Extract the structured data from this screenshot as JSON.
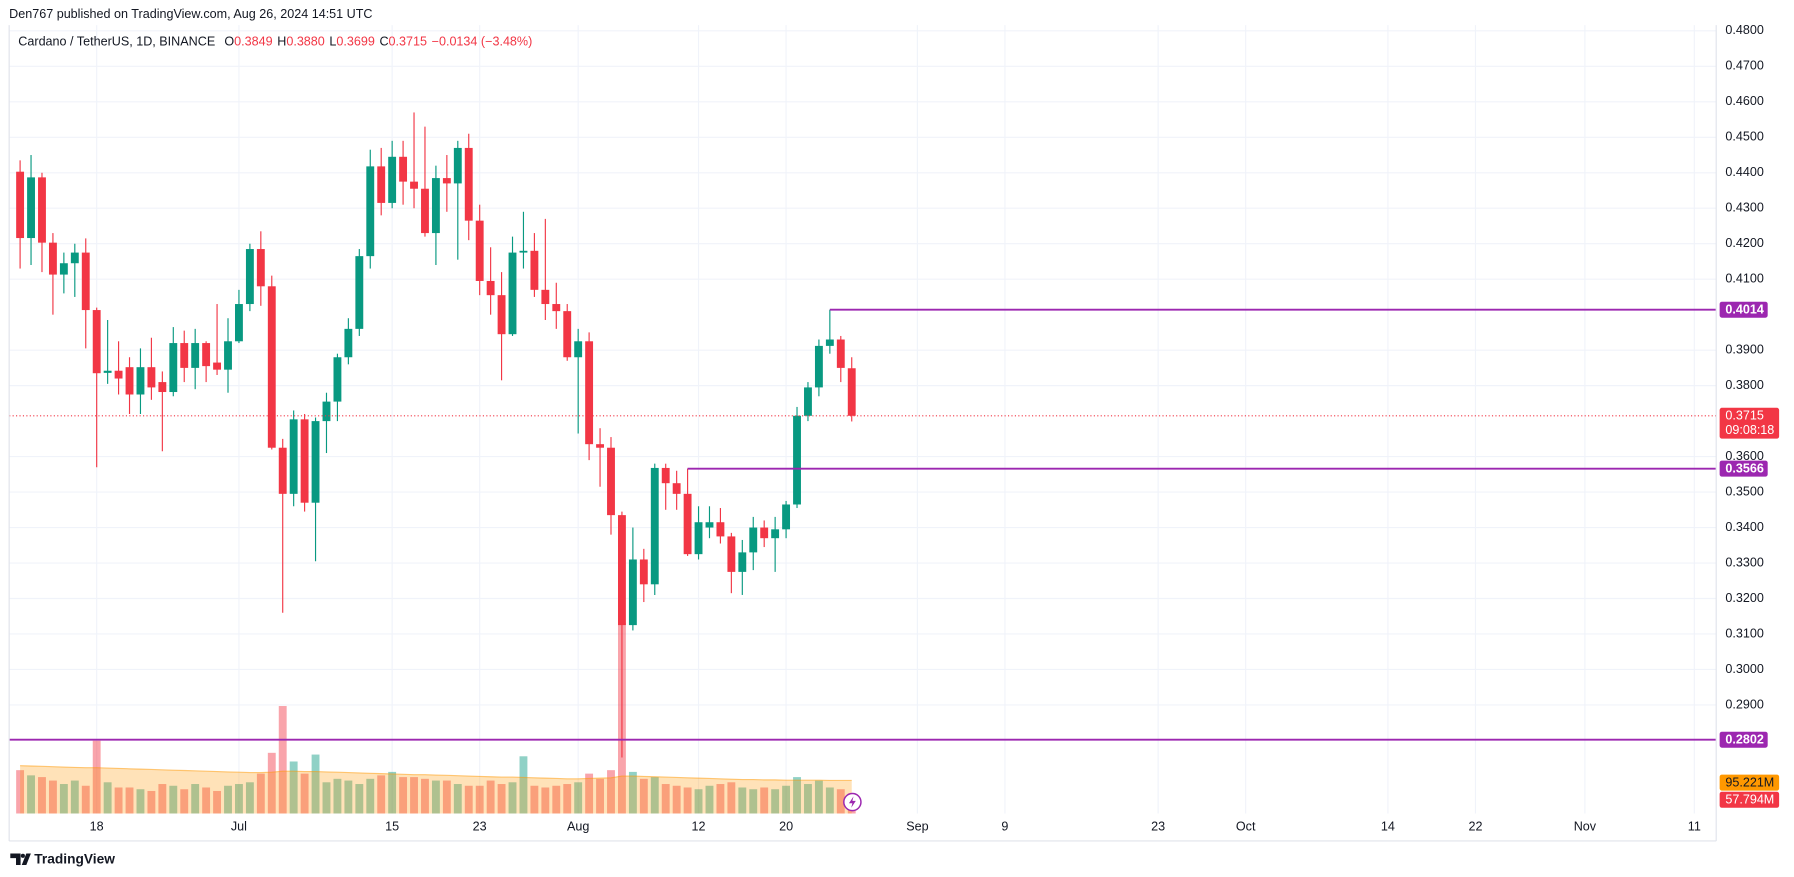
{
  "header": {
    "text": "Den767 published on TradingView.com, Aug 26, 2024 14:51 UTC"
  },
  "legend": {
    "symbol": "Cardano / TetherUS, 1D, BINANCE",
    "o_key": "O",
    "o": "0.3849",
    "h_key": "H",
    "h": "0.3880",
    "l_key": "L",
    "l": "0.3699",
    "c_key": "C",
    "c": "0.3715",
    "change": "−0.0134 (−3.48%)"
  },
  "footer": {
    "brand": "TradingView"
  },
  "chart_data": {
    "type": "candlestick",
    "x": [
      "2024-06-11",
      "2024-06-12",
      "2024-06-13",
      "2024-06-14",
      "2024-06-15",
      "2024-06-16",
      "2024-06-17",
      "2024-06-18",
      "2024-06-19",
      "2024-06-20",
      "2024-06-21",
      "2024-06-22",
      "2024-06-23",
      "2024-06-24",
      "2024-06-25",
      "2024-06-26",
      "2024-06-27",
      "2024-06-28",
      "2024-06-29",
      "2024-06-30",
      "2024-07-01",
      "2024-07-02",
      "2024-07-03",
      "2024-07-04",
      "2024-07-05",
      "2024-07-06",
      "2024-07-07",
      "2024-07-08",
      "2024-07-09",
      "2024-07-10",
      "2024-07-11",
      "2024-07-12",
      "2024-07-13",
      "2024-07-14",
      "2024-07-15",
      "2024-07-16",
      "2024-07-17",
      "2024-07-18",
      "2024-07-19",
      "2024-07-20",
      "2024-07-21",
      "2024-07-22",
      "2024-07-23",
      "2024-07-24",
      "2024-07-25",
      "2024-07-26",
      "2024-07-27",
      "2024-07-28",
      "2024-07-29",
      "2024-07-30",
      "2024-07-31",
      "2024-08-01",
      "2024-08-02",
      "2024-08-03",
      "2024-08-04",
      "2024-08-05",
      "2024-08-06",
      "2024-08-07",
      "2024-08-08",
      "2024-08-09",
      "2024-08-10",
      "2024-08-11",
      "2024-08-12",
      "2024-08-13",
      "2024-08-14",
      "2024-08-15",
      "2024-08-16",
      "2024-08-17",
      "2024-08-18",
      "2024-08-19",
      "2024-08-20",
      "2024-08-21",
      "2024-08-22",
      "2024-08-23",
      "2024-08-24",
      "2024-08-25",
      "2024-08-26"
    ],
    "open": [
      0.4403,
      0.4216,
      0.4387,
      0.4203,
      0.4113,
      0.4145,
      0.4175,
      0.4013,
      0.3836,
      0.3842,
      0.3852,
      0.3775,
      0.3852,
      0.381,
      0.3782,
      0.392,
      0.385,
      0.392,
      0.3865,
      0.3845,
      0.3925,
      0.403,
      0.4185,
      0.408,
      0.3625,
      0.3495,
      0.3705,
      0.347,
      0.37,
      0.3755,
      0.388,
      0.396,
      0.4165,
      0.4418,
      0.4315,
      0.4445,
      0.4375,
      0.4355,
      0.423,
      0.4385,
      0.437,
      0.447,
      0.4265,
      0.4095,
      0.4055,
      0.3945,
      0.4175,
      0.418,
      0.407,
      0.403,
      0.401,
      0.388,
      0.3925,
      0.3635,
      0.3625,
      0.3435,
      0.3125,
      0.331,
      0.324,
      0.3568,
      0.3525,
      0.3495,
      0.3325,
      0.34,
      0.3415,
      0.3375,
      0.3275,
      0.333,
      0.34,
      0.337,
      0.3395,
      0.3465,
      0.3715,
      0.3795,
      0.3912,
      0.393,
      0.3849
    ],
    "high": [
      0.4435,
      0.445,
      0.44,
      0.423,
      0.4175,
      0.42,
      0.4215,
      0.402,
      0.3985,
      0.3925,
      0.388,
      0.3905,
      0.3935,
      0.384,
      0.3965,
      0.3955,
      0.396,
      0.3925,
      0.403,
      0.399,
      0.407,
      0.42,
      0.4235,
      0.411,
      0.365,
      0.373,
      0.372,
      0.371,
      0.378,
      0.389,
      0.399,
      0.4185,
      0.4465,
      0.447,
      0.449,
      0.449,
      0.457,
      0.453,
      0.442,
      0.445,
      0.449,
      0.451,
      0.431,
      0.419,
      0.412,
      0.422,
      0.429,
      0.423,
      0.427,
      0.409,
      0.403,
      0.396,
      0.395,
      0.368,
      0.3655,
      0.3445,
      0.34,
      0.334,
      0.358,
      0.358,
      0.356,
      0.3566,
      0.346,
      0.346,
      0.3455,
      0.3385,
      0.3365,
      0.343,
      0.342,
      0.343,
      0.3475,
      0.374,
      0.381,
      0.393,
      0.4014,
      0.394,
      0.388
    ],
    "low": [
      0.413,
      0.414,
      0.412,
      0.4,
      0.406,
      0.405,
      0.3905,
      0.357,
      0.3805,
      0.3775,
      0.372,
      0.372,
      0.376,
      0.3615,
      0.377,
      0.381,
      0.379,
      0.381,
      0.383,
      0.378,
      0.392,
      0.401,
      0.4025,
      0.362,
      0.316,
      0.346,
      0.3445,
      0.3305,
      0.361,
      0.37,
      0.386,
      0.394,
      0.413,
      0.428,
      0.43,
      0.431,
      0.43,
      0.422,
      0.414,
      0.429,
      0.4155,
      0.421,
      0.4055,
      0.4,
      0.3815,
      0.394,
      0.413,
      0.405,
      0.3985,
      0.396,
      0.387,
      0.3665,
      0.359,
      0.3515,
      0.338,
      0.2752,
      0.311,
      0.319,
      0.321,
      0.345,
      0.345,
      0.332,
      0.331,
      0.337,
      0.3355,
      0.3215,
      0.321,
      0.328,
      0.3345,
      0.3275,
      0.337,
      0.3455,
      0.37,
      0.377,
      0.389,
      0.381,
      0.3699
    ],
    "close": [
      0.4216,
      0.4387,
      0.4203,
      0.4113,
      0.4145,
      0.4175,
      0.4013,
      0.3835,
      0.3842,
      0.382,
      0.3775,
      0.3852,
      0.3795,
      0.3782,
      0.392,
      0.385,
      0.392,
      0.3855,
      0.3845,
      0.3925,
      0.403,
      0.4185,
      0.408,
      0.3625,
      0.3495,
      0.3705,
      0.347,
      0.37,
      0.3755,
      0.388,
      0.396,
      0.4165,
      0.4418,
      0.4315,
      0.4445,
      0.4375,
      0.4355,
      0.423,
      0.4385,
      0.437,
      0.447,
      0.4265,
      0.4095,
      0.4055,
      0.3945,
      0.4175,
      0.418,
      0.407,
      0.403,
      0.401,
      0.388,
      0.3925,
      0.3635,
      0.3625,
      0.3435,
      0.3125,
      0.331,
      0.324,
      0.3568,
      0.3525,
      0.3495,
      0.3325,
      0.3415,
      0.3415,
      0.3375,
      0.3275,
      0.333,
      0.34,
      0.337,
      0.3395,
      0.3465,
      0.3715,
      0.3795,
      0.3912,
      0.393,
      0.385,
      0.3715
    ],
    "volume": {
      "values": [
        125,
        110,
        105,
        95,
        85,
        95,
        80,
        210,
        90,
        75,
        75,
        70,
        65,
        85,
        80,
        70,
        85,
        75,
        65,
        80,
        85,
        90,
        115,
        175,
        310,
        150,
        115,
        170,
        90,
        100,
        95,
        85,
        100,
        110,
        120,
        105,
        105,
        100,
        95,
        95,
        85,
        80,
        80,
        95,
        85,
        90,
        165,
        80,
        75,
        80,
        85,
        90,
        115,
        100,
        125,
        550,
        120,
        100,
        105,
        85,
        80,
        75,
        70,
        80,
        85,
        90,
        75,
        70,
        75,
        70,
        80,
        105,
        85,
        95,
        75,
        70,
        57.794
      ],
      "last_label": "57.794M",
      "color": "#f23645"
    },
    "volume_ma": {
      "values": [
        138,
        137,
        136,
        135,
        134,
        133,
        132,
        132,
        131,
        130,
        129,
        128,
        127,
        126,
        125,
        124,
        123,
        122,
        121,
        120,
        119,
        118,
        118,
        119,
        122,
        122,
        121,
        121,
        120,
        119,
        118,
        117,
        116,
        115,
        114,
        113,
        112,
        112,
        111,
        110,
        109,
        108,
        107,
        106,
        105,
        105,
        104,
        103,
        102,
        101,
        100,
        100,
        101,
        102,
        103,
        108,
        108,
        107,
        106,
        105,
        104,
        103,
        102,
        101,
        100,
        99,
        98,
        98,
        97,
        97,
        96,
        96,
        96,
        96,
        95.5,
        95.3,
        95.221
      ],
      "last_label": "95.221M",
      "color": "#ff9800"
    },
    "volume_lim": [
      0,
      330
    ],
    "up_color": "#089981",
    "down_color": "#f23645",
    "levels": [
      {
        "value": 0.4014,
        "from": "2024-08-24"
      },
      {
        "value": 0.3566,
        "from": "2024-08-11"
      },
      {
        "value": 0.2802,
        "from": "2024-06-10"
      }
    ],
    "level_color": "#9c27b0",
    "last_price": {
      "value": 0.3715,
      "countdown": "09:08:18"
    },
    "xlim": [
      "2024-06-10",
      "2024-11-13"
    ],
    "xticks": [
      {
        "value": "2024-06-18",
        "label": "18"
      },
      {
        "value": "2024-07-01",
        "label": "Jul"
      },
      {
        "value": "2024-07-15",
        "label": "15"
      },
      {
        "value": "2024-07-23",
        "label": "23"
      },
      {
        "value": "2024-08-01",
        "label": "Aug"
      },
      {
        "value": "2024-08-12",
        "label": "12"
      },
      {
        "value": "2024-08-20",
        "label": "20"
      },
      {
        "value": "2024-09-01",
        "label": "Sep"
      },
      {
        "value": "2024-09-09",
        "label": "9"
      },
      {
        "value": "2024-09-23",
        "label": "23"
      },
      {
        "value": "2024-10-01",
        "label": "Oct"
      },
      {
        "value": "2024-10-14",
        "label": "14"
      },
      {
        "value": "2024-10-22",
        "label": "22"
      },
      {
        "value": "2024-11-01",
        "label": "Nov"
      },
      {
        "value": "2024-11-11",
        "label": "11"
      }
    ],
    "ylim": [
      0.2594,
      0.4816
    ],
    "yticks": [
      {
        "value": 0.48,
        "label": "0.4800"
      },
      {
        "value": 0.47,
        "label": "0.4700"
      },
      {
        "value": 0.46,
        "label": "0.4600"
      },
      {
        "value": 0.45,
        "label": "0.4500"
      },
      {
        "value": 0.44,
        "label": "0.4400"
      },
      {
        "value": 0.43,
        "label": "0.4300"
      },
      {
        "value": 0.42,
        "label": "0.4200"
      },
      {
        "value": 0.41,
        "label": "0.4100"
      },
      {
        "value": 0.39,
        "label": "0.3900"
      },
      {
        "value": 0.38,
        "label": "0.3800"
      },
      {
        "value": 0.36,
        "label": "0.3600"
      },
      {
        "value": 0.35,
        "label": "0.3500"
      },
      {
        "value": 0.34,
        "label": "0.3400"
      },
      {
        "value": 0.33,
        "label": "0.3300"
      },
      {
        "value": 0.32,
        "label": "0.3200"
      },
      {
        "value": 0.31,
        "label": "0.3100"
      },
      {
        "value": 0.3,
        "label": "0.3000"
      },
      {
        "value": 0.29,
        "label": "0.2900"
      }
    ],
    "grid": true
  }
}
